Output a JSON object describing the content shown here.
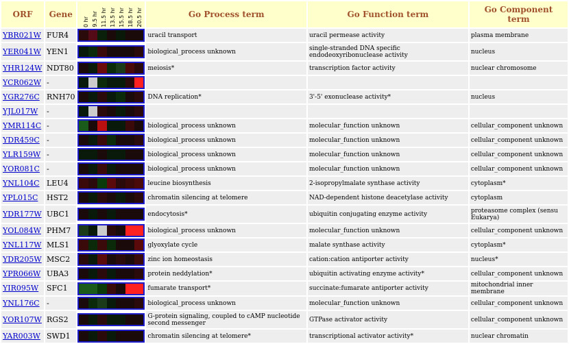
{
  "headers": {
    "orf": "ORF",
    "gene": "Gene",
    "process": "Go Process term",
    "function": "Go Function term",
    "component": "Go Component term"
  },
  "timepoints": [
    "0 hr",
    "9.5 hr",
    "11.5 hr",
    "13.5 hr",
    "15.5 hr",
    "18.5 hr",
    "20.5 hr"
  ],
  "rows": [
    {
      "orf": "YBR021W",
      "gene": "FUR4",
      "process": "uracil transport",
      "function": "uracil permease activity",
      "component": "plasma membrane",
      "colors": [
        "#2a0a0a",
        "#550a18",
        "#0a200a",
        "#1a0a0a",
        "#0a180a",
        "#1a0a0a",
        "#1a0a0a"
      ]
    },
    {
      "orf": "YER041W",
      "gene": "YEN1",
      "process": "biological_process unknown",
      "function": "single-stranded DNA specific endodeoxyribonuclease activity",
      "component": "nucleus",
      "colors": [
        "#0a1a0a",
        "#0a2a0a",
        "#3a0a0a",
        "#1a0a0a",
        "#1a0a0a",
        "#1a0a0a",
        "#2a0a0a"
      ]
    },
    {
      "orf": "YHR124W",
      "gene": "NDT80",
      "process": "meiosis*",
      "function": "transcription factor activity",
      "component": "nuclear chromosome",
      "colors": [
        "#1a0a0a",
        "#0a1a0a",
        "#6a0a0a",
        "#0a2a0a",
        "#1a3a1a",
        "#4a0a0a",
        "#2a0a0a"
      ]
    },
    {
      "orf": "YCR062W",
      "gene": "-",
      "process": "",
      "function": "",
      "component": "",
      "colors": [
        "#0a1a0a",
        "#cccccc",
        "#0a2a0a",
        "#0a1a0a",
        "#0a1a0a",
        "#2a0a0a",
        "#ff2020"
      ]
    },
    {
      "orf": "YGR276C",
      "gene": "RNH70",
      "process": "DNA replication*",
      "function": "3'-5' exonuclease activity*",
      "component": "nucleus",
      "colors": [
        "#1a0a0a",
        "#0a1a0a",
        "#2a0a0a",
        "#0a1a0a",
        "#0a2a0a",
        "#1a0a0a",
        "#2a0a0a"
      ]
    },
    {
      "orf": "YJL017W",
      "gene": "-",
      "process": "",
      "function": "",
      "component": "",
      "colors": [
        "#0a1a0a",
        "#cccccc",
        "#2a0a0a",
        "#1a0a0a",
        "#0a1a0a",
        "#1a0a0a",
        "#2a0a0a"
      ]
    },
    {
      "orf": "YMR114C",
      "gene": "-",
      "process": "biological_process unknown",
      "function": "molecular_function unknown",
      "component": "cellular_component unknown",
      "colors": [
        "#1a5a1a",
        "#1a0a0a",
        "#bb1010",
        "#0a1a0a",
        "#0a1a0a",
        "#3a0a0a",
        "#1a0a0a"
      ]
    },
    {
      "orf": "YDR459C",
      "gene": "-",
      "process": "biological_process unknown",
      "function": "molecular_function unknown",
      "component": "cellular_component unknown",
      "colors": [
        "#1a0a0a",
        "#0a1a0a",
        "#3a0a0a",
        "#0a2a0a",
        "#1a0a0a",
        "#1a0a0a",
        "#2a0a0a"
      ]
    },
    {
      "orf": "YLR159W",
      "gene": "-",
      "process": "biological_process unknown",
      "function": "molecular_function unknown",
      "component": "cellular_component unknown",
      "colors": [
        "#0a1a0a",
        "#0a1a0a",
        "#1a0a0a",
        "#0a1a0a",
        "#0a1a0a",
        "#1a0a0a",
        "#1a0a0a"
      ]
    },
    {
      "orf": "YOR081C",
      "gene": "-",
      "process": "biological_process unknown",
      "function": "molecular_function unknown",
      "component": "cellular_component unknown",
      "colors": [
        "#1a0a0a",
        "#0a1a0a",
        "#3a0a0a",
        "#0a1a0a",
        "#1a0a0a",
        "#1a0a0a",
        "#1a0a0a"
      ]
    },
    {
      "orf": "YNL104C",
      "gene": "LEU4",
      "process": "leucine biosynthesis",
      "function": "2-isopropylmalate synthase activity",
      "component": "cytoplasm*",
      "colors": [
        "#3a0a0a",
        "#2a0a0a",
        "#0a3a0a",
        "#5a0a0a",
        "#2a0a0a",
        "#3a0a0a",
        "#4a0a0a"
      ]
    },
    {
      "orf": "YPL015C",
      "gene": "HST2",
      "process": "chromatin silencing at telomere",
      "function": "NAD-dependent histone deacetylase activity",
      "component": "cytoplasm",
      "colors": [
        "#1a0a0a",
        "#0a1a0a",
        "#2a0a0a",
        "#1a0a0a",
        "#0a1a0a",
        "#1a0a0a",
        "#2a0a0a"
      ]
    },
    {
      "orf": "YDR177W",
      "gene": "UBC1",
      "process": "endocytosis*",
      "function": "ubiquitin conjugating enzyme activity",
      "component": "proteasome complex (sensu Eukarya)",
      "colors": [
        "#1a0a0a",
        "#0a1a0a",
        "#1a0a0a",
        "#0a1a0a",
        "#1a0a0a",
        "#1a0a0a",
        "#1a0a0a"
      ]
    },
    {
      "orf": "YOL084W",
      "gene": "PHM7",
      "process": "biological_process unknown",
      "function": "molecular_function unknown",
      "component": "cellular_component unknown",
      "colors": [
        "#1a3a1a",
        "#0a1a0a",
        "#cccccc",
        "#2a0a0a",
        "#1a0a0a",
        "#ff2020",
        "#ff2020"
      ]
    },
    {
      "orf": "YNL117W",
      "gene": "MLS1",
      "process": "glyoxylate cycle",
      "function": "malate synthase activity",
      "component": "cytoplasm*",
      "colors": [
        "#3a0a0a",
        "#0a2a0a",
        "#3a0a0a",
        "#0a2a0a",
        "#1a0a0a",
        "#1a0a0a",
        "#5a0a0a"
      ]
    },
    {
      "orf": "YDR205W",
      "gene": "MSC2",
      "process": "zinc ion homeostasis",
      "function": "cation:cation antiporter activity",
      "component": "nucleus*",
      "colors": [
        "#2a0a0a",
        "#0a1a0a",
        "#5a0a0a",
        "#1a0a0a",
        "#2a0a0a",
        "#1a0a0a",
        "#3a0a0a"
      ]
    },
    {
      "orf": "YPR066W",
      "gene": "UBA3",
      "process": "protein neddylation*",
      "function": "ubiquitin activating enzyme activity*",
      "component": "cellular_component unknown",
      "colors": [
        "#1a0a0a",
        "#0a1a0a",
        "#2a0a0a",
        "#0a1a0a",
        "#1a0a0a",
        "#1a0a0a",
        "#2a0a0a"
      ]
    },
    {
      "orf": "YIR095W",
      "gene": "SFC1",
      "process": "fumarate transport*",
      "function": "succinate:fumarate antiporter activity",
      "component": "mitochondrial inner membrane",
      "colors": [
        "#1a5a1a",
        "#1a5a1a",
        "#0a3a0a",
        "#3a0a0a",
        "#1a0a0a",
        "#ff2020",
        "#ff2020"
      ]
    },
    {
      "orf": "YNL176C",
      "gene": "-",
      "process": "biological_process unknown",
      "function": "molecular_function unknown",
      "component": "cellular_component unknown",
      "colors": [
        "#1a0a0a",
        "#0a2a0a",
        "#1a3a1a",
        "#0a1a0a",
        "#1a0a0a",
        "#1a0a0a",
        "#2a0a0a"
      ]
    },
    {
      "orf": "YOR107W",
      "gene": "RGS2",
      "process": "G-protein signaling, coupled to cAMP nucleotide second messenger",
      "function": "GTPase activator activity",
      "component": "cellular_component unknown",
      "colors": [
        "#1a0a0a",
        "#0a1a0a",
        "#2a0a0a",
        "#0a1a0a",
        "#0a1a0a",
        "#1a0a0a",
        "#1a0a0a"
      ]
    },
    {
      "orf": "YAR003W",
      "gene": "SWD1",
      "process": "chromatin silencing at telomere*",
      "function": "transcriptional activator activity*",
      "component": "nuclear chromatin",
      "colors": [
        "#1a0a0a",
        "#0a1a0a",
        "#2a0a0a",
        "#0a1a0a",
        "#1a0a0a",
        "#1a0a0a",
        "#1a0a0a"
      ]
    }
  ]
}
